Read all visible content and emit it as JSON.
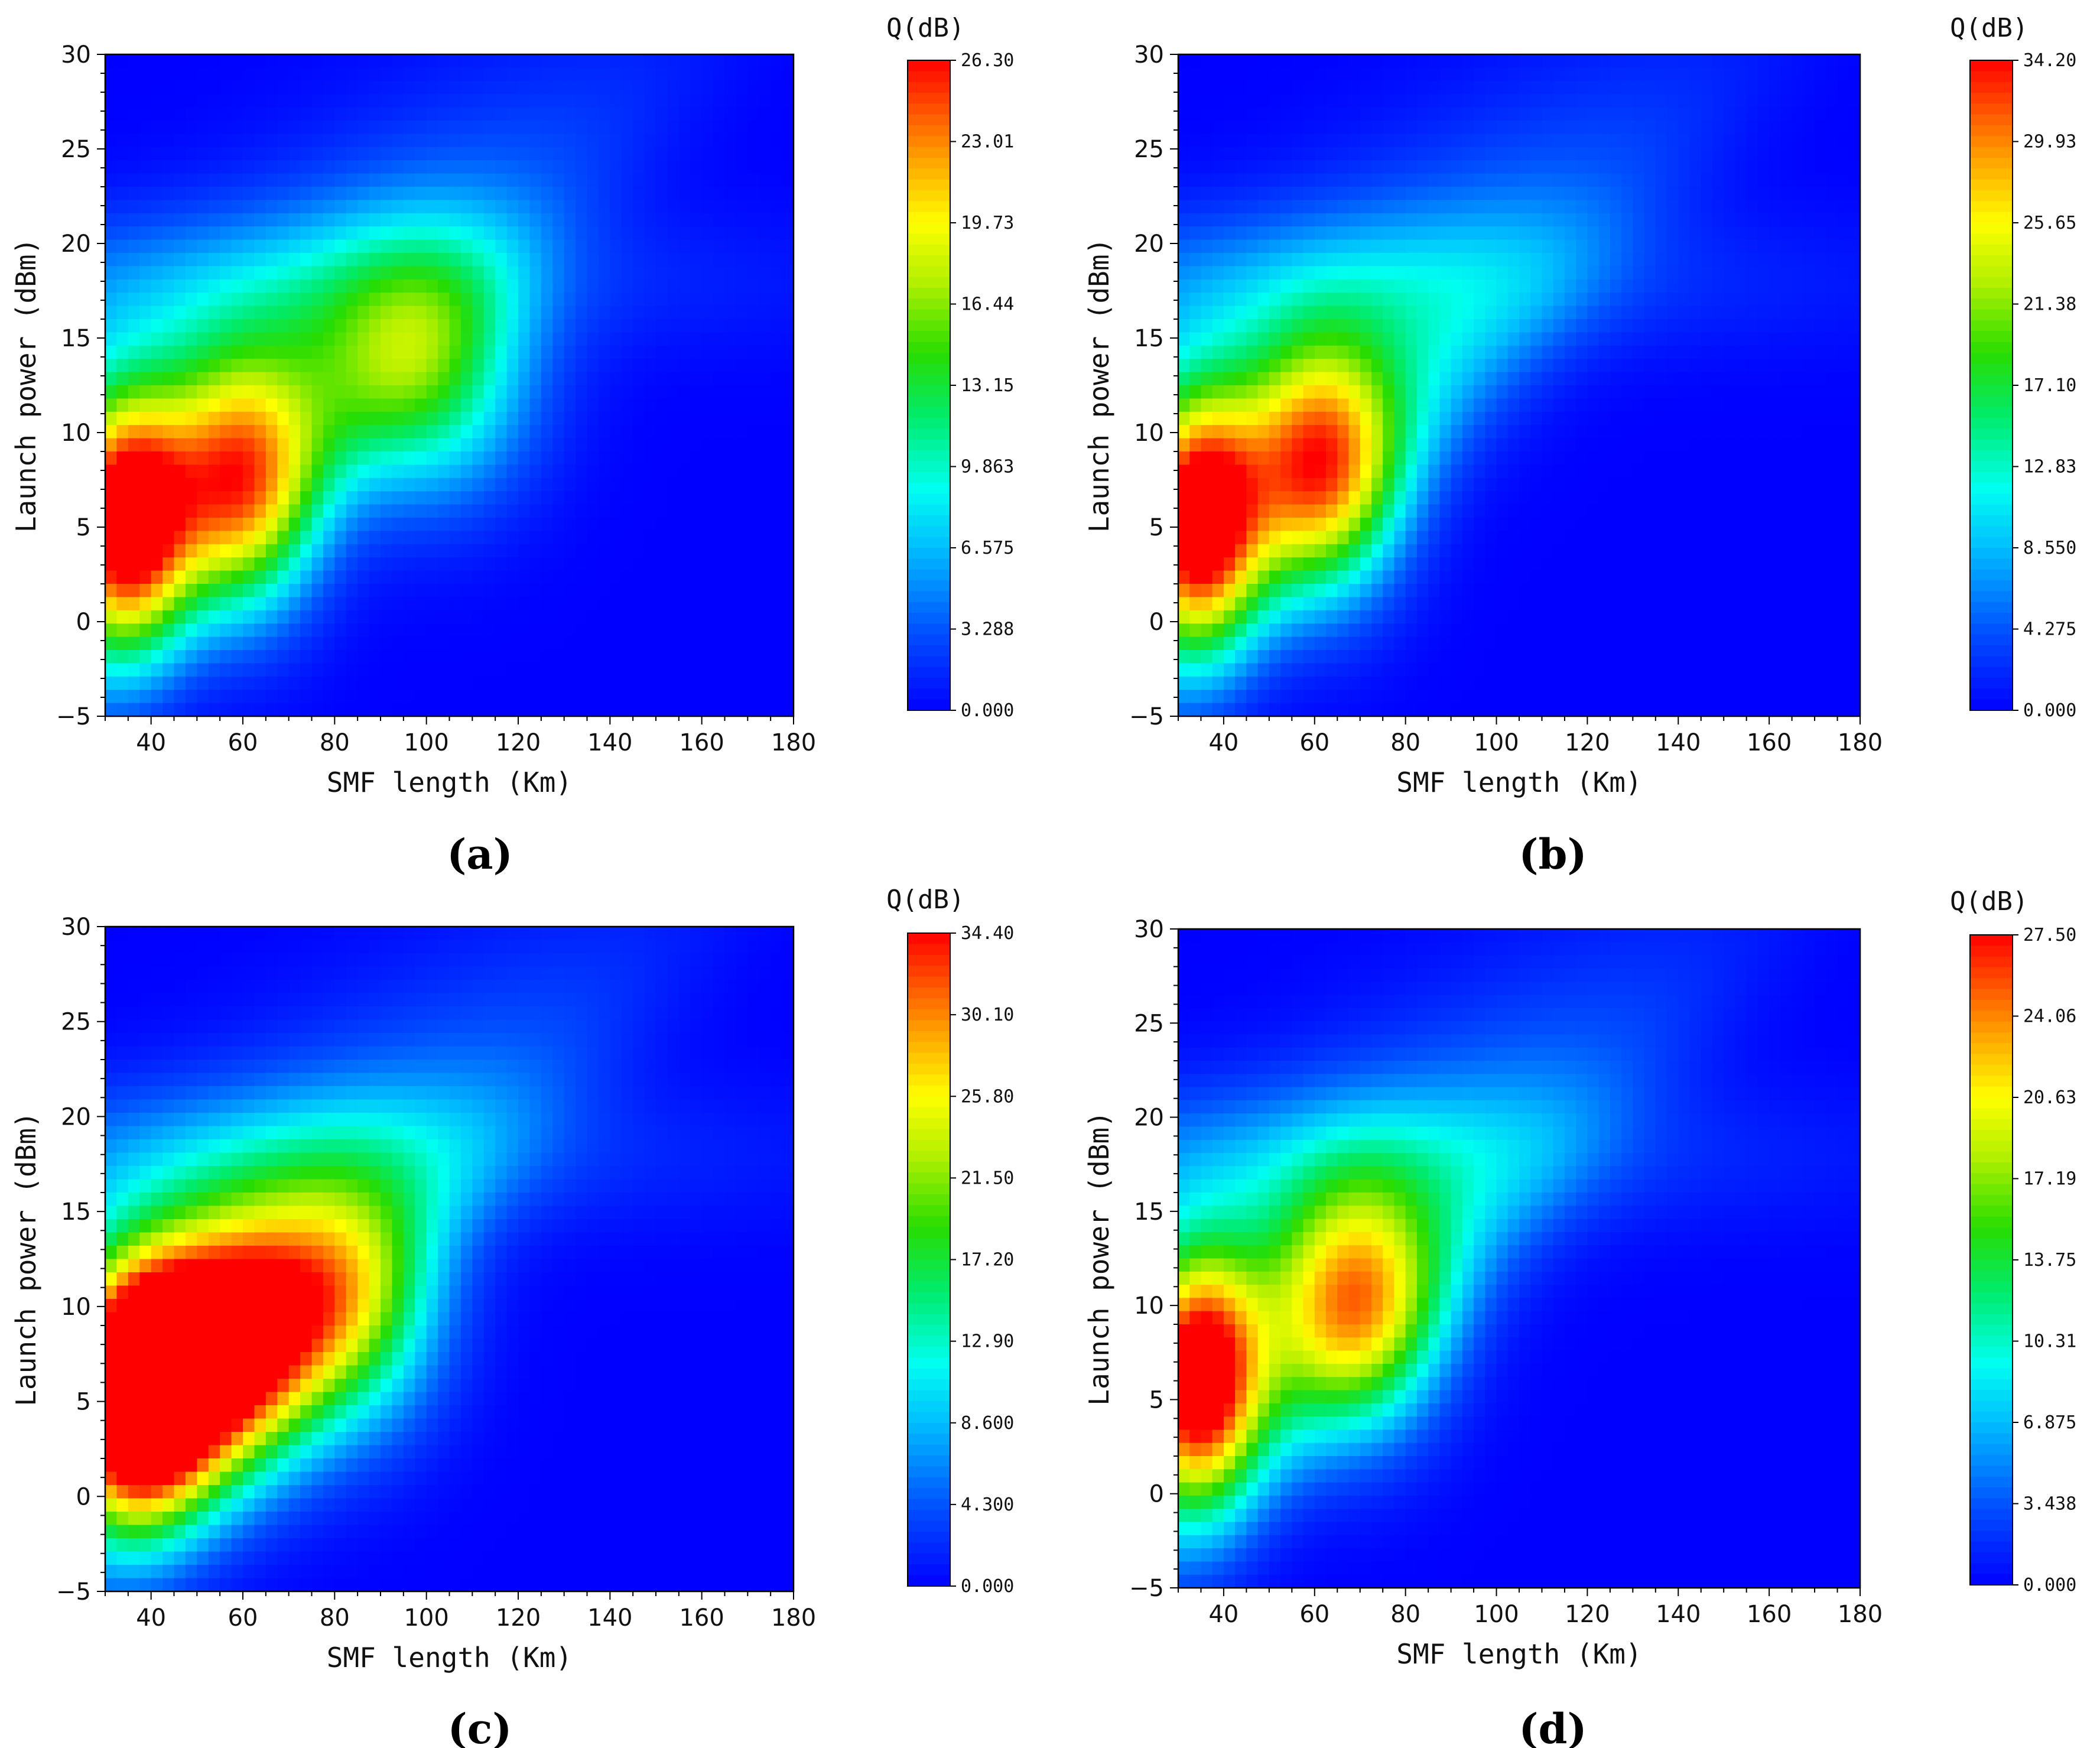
{
  "chart_data": [
    {
      "type": "heatmap",
      "panel_label": "(a)",
      "xlabel": "SMF length (Km)",
      "ylabel": "Launch power (dBm)",
      "xlim": [
        30,
        180
      ],
      "ylim": [
        -5,
        30
      ],
      "xticks": [
        40,
        60,
        80,
        100,
        120,
        140,
        160,
        180
      ],
      "yticks": [
        -5,
        0,
        5,
        10,
        15,
        20,
        25,
        30
      ],
      "colorbar": {
        "title": "Q(dB)",
        "min": 0,
        "max": 26.3,
        "ticks": [
          "0.000",
          "3.288",
          "6.575",
          "9.863",
          "13.15",
          "16.44",
          "19.73",
          "23.01",
          "26.30"
        ]
      },
      "peaks": [
        {
          "x": 35,
          "y": 5,
          "value": 26.3
        },
        {
          "x": 60,
          "y": 7,
          "value": 21
        },
        {
          "x": 100,
          "y": 13,
          "value": 15
        }
      ]
    },
    {
      "type": "heatmap",
      "panel_label": "(b)",
      "xlabel": "SMF length (Km)",
      "ylabel": "Launch power (dBm)",
      "xlim": [
        30,
        180
      ],
      "ylim": [
        -5,
        30
      ],
      "xticks": [
        40,
        60,
        80,
        100,
        120,
        140,
        160,
        180
      ],
      "yticks": [
        -5,
        0,
        5,
        10,
        15,
        20,
        25,
        30
      ],
      "colorbar": {
        "title": "Q(dB)",
        "min": 0,
        "max": 34.2,
        "ticks": [
          "0.000",
          "4.275",
          "8.550",
          "12.83",
          "17.10",
          "21.38",
          "25.65",
          "29.93",
          "34.20"
        ]
      },
      "peaks": [
        {
          "x": 35,
          "y": 5,
          "value": 34.2
        },
        {
          "x": 62,
          "y": 8,
          "value": 28
        }
      ]
    },
    {
      "type": "heatmap",
      "panel_label": "(c)",
      "xlabel": "SMF length (Km)",
      "ylabel": "Launch power (dBm)",
      "xlim": [
        30,
        180
      ],
      "ylim": [
        -5,
        30
      ],
      "xticks": [
        40,
        60,
        80,
        100,
        120,
        140,
        160,
        180
      ],
      "yticks": [
        -5,
        0,
        5,
        10,
        15,
        20,
        25,
        30
      ],
      "colorbar": {
        "title": "Q(dB)",
        "min": 0,
        "max": 34.4,
        "ticks": [
          "0.000",
          "4.300",
          "8.600",
          "12.90",
          "17.20",
          "21.50",
          "25.80",
          "30.10",
          "34.40"
        ]
      },
      "peaks": [
        {
          "x": 35,
          "y": 5,
          "value": 34.4
        },
        {
          "x": 45,
          "y": 6,
          "value": 33
        },
        {
          "x": 60,
          "y": 8,
          "value": 29
        },
        {
          "x": 82,
          "y": 10,
          "value": 24
        }
      ]
    },
    {
      "type": "heatmap",
      "panel_label": "(d)",
      "xlabel": "SMF length (Km)",
      "ylabel": "Launch power (dBm)",
      "xlim": [
        30,
        180
      ],
      "ylim": [
        -5,
        30
      ],
      "xticks": [
        40,
        60,
        80,
        100,
        120,
        140,
        160,
        180
      ],
      "yticks": [
        -5,
        0,
        5,
        10,
        15,
        20,
        25,
        30
      ],
      "colorbar": {
        "title": "Q(dB)",
        "min": 0,
        "max": 27.5,
        "ticks": [
          "0.000",
          "3.438",
          "6.875",
          "10.31",
          "13.75",
          "17.19",
          "20.63",
          "24.06",
          "27.50"
        ]
      },
      "peaks": [
        {
          "x": 35,
          "y": 6,
          "value": 27.5
        },
        {
          "x": 70,
          "y": 10,
          "value": 20
        }
      ]
    }
  ]
}
